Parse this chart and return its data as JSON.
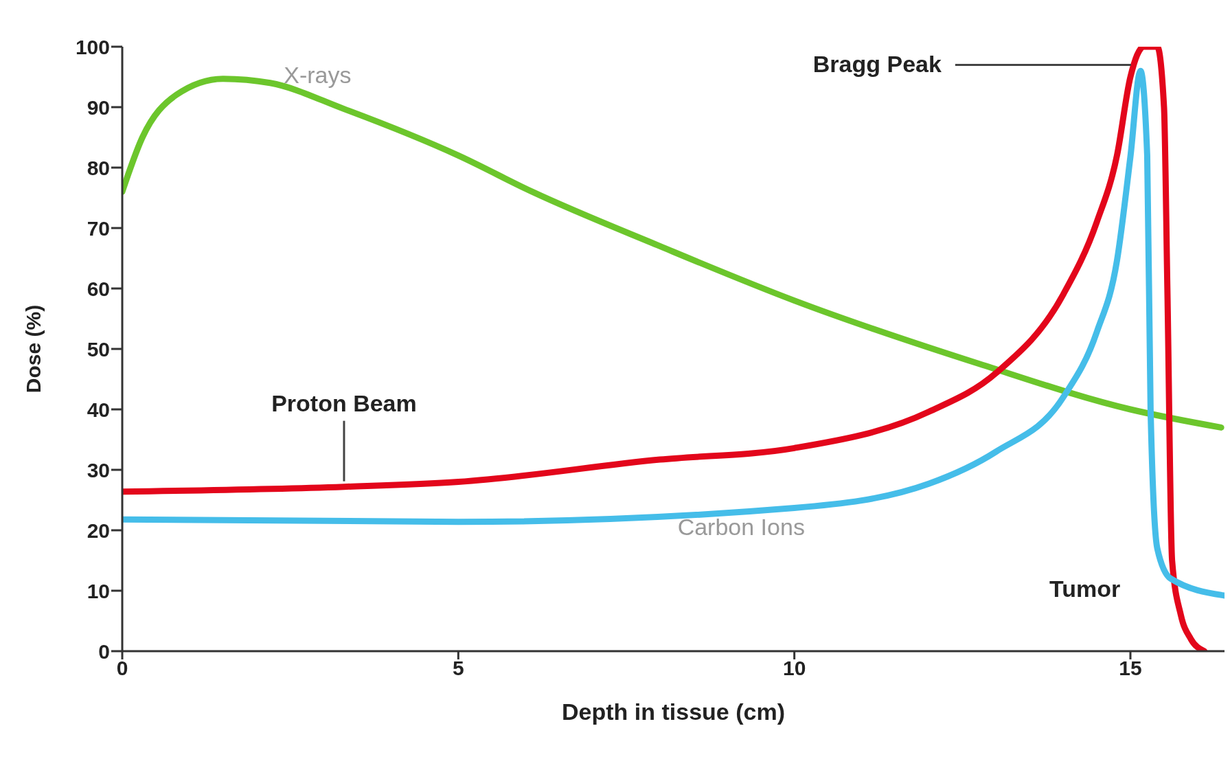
{
  "chart_data": {
    "type": "line",
    "xlabel": "Depth in tissue (cm)",
    "ylabel": "Dose (%)",
    "xlim": [
      0,
      16.4
    ],
    "xticks": [
      0,
      5,
      10,
      15
    ],
    "ylim": [
      0,
      100
    ],
    "yticks": [
      0,
      10,
      20,
      30,
      40,
      50,
      60,
      70,
      80,
      90,
      100
    ],
    "marker": "none",
    "line_style": "solid",
    "series": [
      {
        "name": "X-rays",
        "color": "#6cc62c",
        "x": [
          0,
          0.3,
          0.8,
          1.5,
          2.2,
          3.3,
          5,
          6.1,
          8,
          10,
          12.76,
          15,
          16.35
        ],
        "values": [
          76,
          85,
          92,
          94.7,
          94,
          89.7,
          82,
          76,
          67,
          58,
          47.5,
          40,
          37
        ]
      },
      {
        "name": "Proton Beam",
        "color": "#e3061b",
        "x": [
          0,
          3.3,
          5,
          8,
          10,
          12,
          13,
          14,
          14.5,
          14.8,
          15,
          15.2,
          15.4,
          15.5,
          15.55,
          15.62,
          15.75,
          15.9,
          16.1
        ],
        "values": [
          26.4,
          27.2,
          28,
          31.7,
          33.6,
          39.6,
          46,
          59,
          71,
          82,
          95,
          100,
          100,
          90,
          60,
          15,
          6,
          2,
          0
        ]
      },
      {
        "name": "Carbon Ions",
        "color": "#45bde9",
        "x": [
          0,
          5,
          10,
          12,
          13,
          14,
          14.5,
          14.8,
          15,
          15.15,
          15.25,
          15.3,
          15.4,
          15.6,
          16.4
        ],
        "values": [
          21.8,
          21.4,
          23.7,
          27.7,
          33,
          42,
          52.8,
          64.6,
          81.8,
          96,
          82,
          40,
          17,
          12,
          9.2
        ]
      }
    ],
    "annotations": [
      {
        "text": "Bragg Peak",
        "x": 15.05,
        "y": 97
      },
      "Tumor"
    ]
  }
}
